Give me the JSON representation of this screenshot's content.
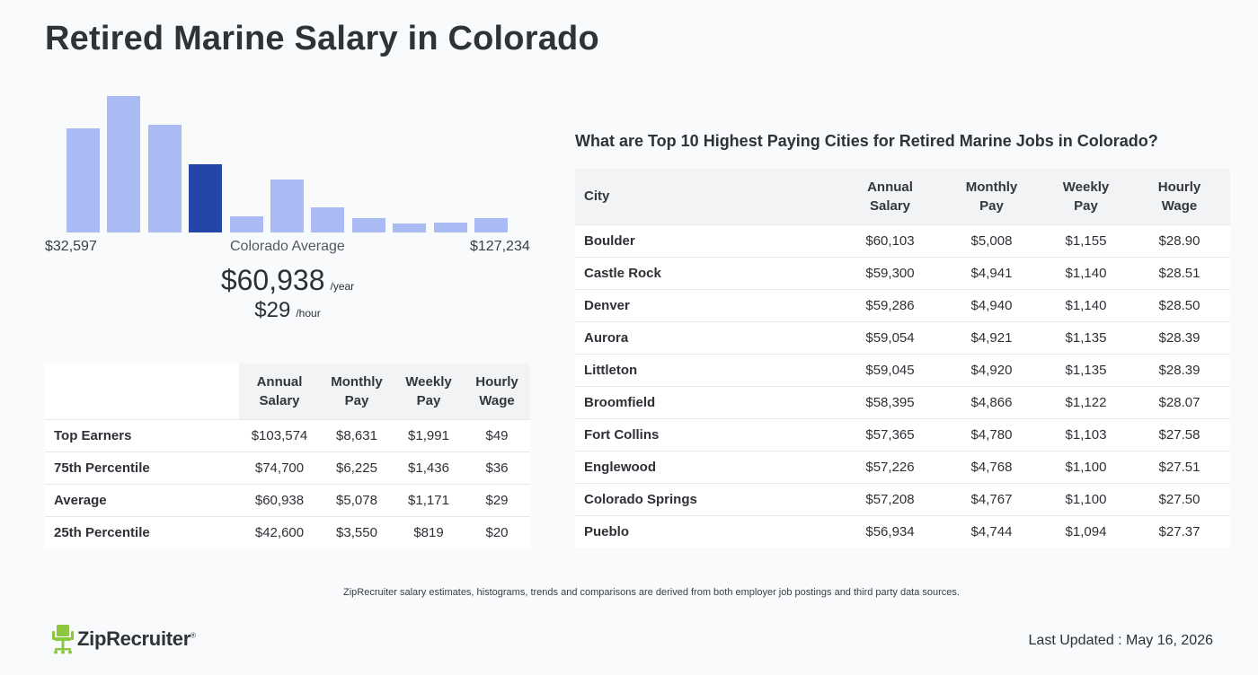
{
  "page": {
    "title": "Retired Marine Salary in Colorado"
  },
  "chart_data": {
    "type": "bar",
    "title": "",
    "categories": [
      "1",
      "2",
      "3",
      "4",
      "5",
      "6",
      "7",
      "8",
      "9",
      "10",
      "11"
    ],
    "values": [
      95,
      124,
      98,
      62,
      15,
      48,
      23,
      13,
      8,
      9,
      13
    ],
    "ylim": [
      0,
      124
    ],
    "highlight_index": 3,
    "colors": {
      "bar": "#a9bbf2",
      "highlight": "#2446a8"
    },
    "x_min_label": "$32,597",
    "x_max_label": "$127,234",
    "center_label": "Colorado Average",
    "grid": false
  },
  "summary": {
    "annual": "$60,938",
    "annual_unit": "/year",
    "hourly": "$29",
    "hourly_unit": "/hour"
  },
  "percentile_table": {
    "headers": [
      "",
      "Annual\nSalary",
      "Monthly\nPay",
      "Weekly\nPay",
      "Hourly\nWage"
    ],
    "rows": [
      {
        "label": "Top Earners",
        "annual": "$103,574",
        "monthly": "$8,631",
        "weekly": "$1,991",
        "hourly": "$49"
      },
      {
        "label": "75th Percentile",
        "annual": "$74,700",
        "monthly": "$6,225",
        "weekly": "$1,436",
        "hourly": "$36"
      },
      {
        "label": "Average",
        "annual": "$60,938",
        "monthly": "$5,078",
        "weekly": "$1,171",
        "hourly": "$29"
      },
      {
        "label": "25th Percentile",
        "annual": "$42,600",
        "monthly": "$3,550",
        "weekly": "$819",
        "hourly": "$20"
      }
    ]
  },
  "cities": {
    "heading": "What are Top 10 Highest Paying Cities for Retired Marine Jobs in Colorado?",
    "headers": [
      "City",
      "Annual\nSalary",
      "Monthly\nPay",
      "Weekly\nPay",
      "Hourly\nWage"
    ],
    "rows": [
      {
        "city": "Boulder",
        "annual": "$60,103",
        "monthly": "$5,008",
        "weekly": "$1,155",
        "hourly": "$28.90"
      },
      {
        "city": "Castle Rock",
        "annual": "$59,300",
        "monthly": "$4,941",
        "weekly": "$1,140",
        "hourly": "$28.51"
      },
      {
        "city": "Denver",
        "annual": "$59,286",
        "monthly": "$4,940",
        "weekly": "$1,140",
        "hourly": "$28.50"
      },
      {
        "city": "Aurora",
        "annual": "$59,054",
        "monthly": "$4,921",
        "weekly": "$1,135",
        "hourly": "$28.39"
      },
      {
        "city": "Littleton",
        "annual": "$59,045",
        "monthly": "$4,920",
        "weekly": "$1,135",
        "hourly": "$28.39"
      },
      {
        "city": "Broomfield",
        "annual": "$58,395",
        "monthly": "$4,866",
        "weekly": "$1,122",
        "hourly": "$28.07"
      },
      {
        "city": "Fort Collins",
        "annual": "$57,365",
        "monthly": "$4,780",
        "weekly": "$1,103",
        "hourly": "$27.58"
      },
      {
        "city": "Englewood",
        "annual": "$57,226",
        "monthly": "$4,768",
        "weekly": "$1,100",
        "hourly": "$27.51"
      },
      {
        "city": "Colorado Springs",
        "annual": "$57,208",
        "monthly": "$4,767",
        "weekly": "$1,100",
        "hourly": "$27.50"
      },
      {
        "city": "Pueblo",
        "annual": "$56,934",
        "monthly": "$4,744",
        "weekly": "$1,094",
        "hourly": "$27.37"
      }
    ]
  },
  "footer": {
    "note": "ZipRecruiter salary estimates, histograms, trends and comparisons are derived from both employer job postings and third party data sources.",
    "logo_text": "ZipRecruiter",
    "logo_mark": "®",
    "logo_icon": "chair-icon",
    "logo_color": "#8dc63f",
    "last_updated": "Last Updated : May 16, 2026"
  }
}
